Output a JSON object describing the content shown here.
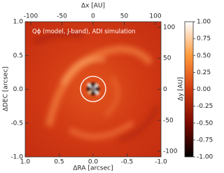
{
  "chart_data": {
    "type": "image",
    "annotation": "Qϕ (model, J-band), ADI simulation",
    "xlabel": "ΔRA [arcsec]",
    "ylabel": "ΔDEC [arcsec]",
    "x2label": "Δx [AU]",
    "y2label": "Δy [AU]",
    "xlim": [
      1,
      -1
    ],
    "ylim": [
      -1,
      1
    ],
    "xticks": [
      {
        "value": 1,
        "label": "1.0"
      },
      0.5,
      {
        "value": 0,
        "label": "0.0"
      },
      -0.5,
      {
        "value": -1,
        "label": "-1.0"
      }
    ],
    "yticks": [
      {
        "value": 1,
        "label": "1.0"
      },
      0.5,
      {
        "value": 0,
        "label": "0.0"
      },
      -0.5,
      {
        "value": -1,
        "label": "-1.0"
      }
    ],
    "x2lim": [
      -109,
      109
    ],
    "x2ticks": [
      -100,
      -50,
      0,
      50,
      100
    ],
    "y2lim": [
      -109,
      109
    ],
    "y2ticks": [
      100,
      50,
      0,
      -50,
      -100
    ],
    "colorbar": {
      "lim": [
        -1,
        1
      ],
      "ticks": [
        {
          "value": 1,
          "label": "1.00"
        },
        0.75,
        {
          "value": 0.5,
          "label": "0.50"
        },
        0.25,
        {
          "value": 0,
          "label": "0.00"
        },
        -0.25,
        {
          "value": -0.5,
          "label": "-0.50"
        },
        -0.75,
        {
          "value": -1,
          "label": "-1.00"
        }
      ],
      "colors": [
        "#000000",
        "#7a0a00",
        "#d23a10",
        "#ff9a3c",
        "#ffffff"
      ]
    }
  }
}
